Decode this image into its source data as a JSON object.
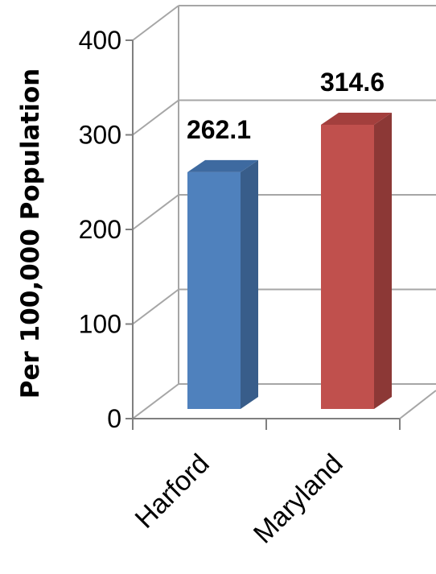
{
  "chart_data": {
    "type": "bar",
    "categories": [
      "Harford",
      "Maryland"
    ],
    "values": [
      262.1,
      314.6
    ],
    "value_labels": [
      "262.1",
      "314.6"
    ],
    "ylabel": "Per 100,000 Population",
    "ylim": [
      0,
      400
    ],
    "yticks": [
      "0",
      "100",
      "200",
      "300",
      "400"
    ],
    "grid": true,
    "style": "3d-column",
    "legend": "none",
    "colors": {
      "series": [
        "#4F81BD",
        "#C0504D"
      ],
      "side": [
        "#385D8A",
        "#8C3836"
      ],
      "top": [
        "#3E6AA0",
        "#A33F3D"
      ],
      "grid": "#A6A6A6",
      "axis": "#808080"
    }
  }
}
